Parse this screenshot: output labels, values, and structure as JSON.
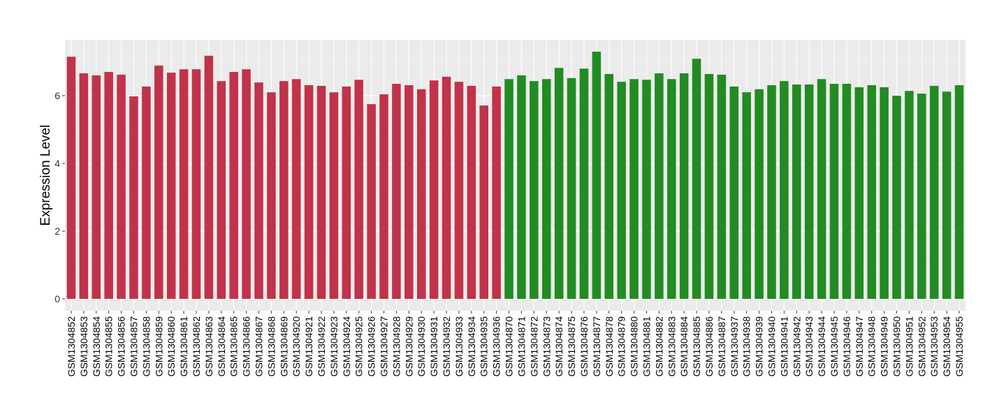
{
  "chart_data": {
    "type": "bar",
    "title": "",
    "xlabel": "",
    "ylabel": "Expression Level",
    "ylim": [
      -0.35,
      7.65
    ],
    "yticks": [
      0,
      2,
      4,
      6
    ],
    "grid": true,
    "categories": [
      "GSM1304852",
      "GSM1304853",
      "GSM1304854",
      "GSM1304855",
      "GSM1304856",
      "GSM1304857",
      "GSM1304858",
      "GSM1304859",
      "GSM1304860",
      "GSM1304861",
      "GSM1304862",
      "GSM1304863",
      "GSM1304864",
      "GSM1304865",
      "GSM1304866",
      "GSM1304867",
      "GSM1304868",
      "GSM1304869",
      "GSM1304920",
      "GSM1304921",
      "GSM1304922",
      "GSM1304923",
      "GSM1304924",
      "GSM1304925",
      "GSM1304926",
      "GSM1304927",
      "GSM1304928",
      "GSM1304929",
      "GSM1304930",
      "GSM1304931",
      "GSM1304932",
      "GSM1304933",
      "GSM1304934",
      "GSM1304935",
      "GSM1304936",
      "GSM1304870",
      "GSM1304871",
      "GSM1304872",
      "GSM1304873",
      "GSM1304874",
      "GSM1304875",
      "GSM1304876",
      "GSM1304877",
      "GSM1304878",
      "GSM1304879",
      "GSM1304880",
      "GSM1304881",
      "GSM1304882",
      "GSM1304883",
      "GSM1304884",
      "GSM1304885",
      "GSM1304886",
      "GSM1304887",
      "GSM1304937",
      "GSM1304938",
      "GSM1304939",
      "GSM1304940",
      "GSM1304941",
      "GSM1304942",
      "GSM1304943",
      "GSM1304944",
      "GSM1304945",
      "GSM1304946",
      "GSM1304947",
      "GSM1304948",
      "GSM1304949",
      "GSM1304950",
      "GSM1304951",
      "GSM1304952",
      "GSM1304953",
      "GSM1304954",
      "GSM1304955"
    ],
    "values": [
      7.15,
      6.66,
      6.6,
      6.7,
      6.62,
      5.98,
      6.27,
      6.89,
      6.68,
      6.78,
      6.78,
      7.18,
      6.43,
      6.7,
      6.78,
      6.39,
      6.1,
      6.43,
      6.49,
      6.31,
      6.29,
      6.1,
      6.27,
      6.47,
      5.75,
      6.04,
      6.35,
      6.31,
      6.19,
      6.45,
      6.56,
      6.41,
      6.29,
      5.71,
      6.27,
      6.49,
      6.6,
      6.43,
      6.49,
      6.82,
      6.52,
      6.8,
      7.3,
      6.64,
      6.41,
      6.49,
      6.47,
      6.66,
      6.49,
      6.66,
      7.09,
      6.64,
      6.62,
      6.27,
      6.1,
      6.19,
      6.31,
      6.43,
      6.33,
      6.33,
      6.49,
      6.35,
      6.35,
      6.25,
      6.31,
      6.25,
      6.0,
      6.14,
      6.06,
      6.29,
      6.12,
      6.31
    ],
    "group_sizes": [
      35,
      37
    ],
    "colors": [
      "#c0334a",
      "#228b22"
    ]
  }
}
